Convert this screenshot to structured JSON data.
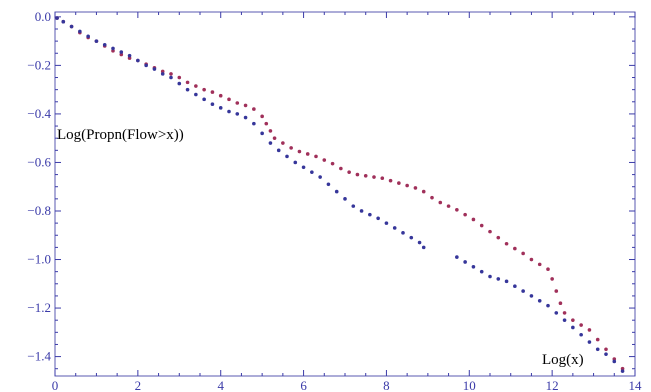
{
  "chart_data": {
    "type": "scatter",
    "xlabel": "Log(x)",
    "ylabel": "Log(Propn(Flow>x))",
    "xlim": [
      0,
      14
    ],
    "ylim": [
      -1.48,
      0.02
    ],
    "x_ticks": [
      0,
      2,
      4,
      6,
      8,
      10,
      12,
      14
    ],
    "y_ticks": [
      0.0,
      -0.2,
      -0.4,
      -0.6,
      -0.8,
      -1.0,
      -1.2,
      -1.4
    ],
    "y_tick_labels": [
      "0.0",
      "−0.2",
      "−0.4",
      "−0.6",
      "−0.8",
      "−1.0",
      "−1.2",
      "−1.4"
    ],
    "grid": false,
    "frame": true,
    "colors": {
      "axis": "#3a3aa8",
      "frame": "#5a5ab0"
    },
    "series": [
      {
        "color": "#a0305a",
        "points": [
          [
            0.05,
            -0.005
          ],
          [
            0.2,
            -0.02
          ],
          [
            0.4,
            -0.04
          ],
          [
            0.6,
            -0.065
          ],
          [
            0.8,
            -0.085
          ],
          [
            1.0,
            -0.1
          ],
          [
            1.2,
            -0.12
          ],
          [
            1.4,
            -0.14
          ],
          [
            1.6,
            -0.155
          ],
          [
            1.8,
            -0.17
          ],
          [
            2.0,
            -0.18
          ],
          [
            2.2,
            -0.195
          ],
          [
            2.4,
            -0.21
          ],
          [
            2.6,
            -0.225
          ],
          [
            2.8,
            -0.235
          ],
          [
            3.0,
            -0.25
          ],
          [
            3.2,
            -0.27
          ],
          [
            3.4,
            -0.285
          ],
          [
            3.6,
            -0.3
          ],
          [
            3.8,
            -0.31
          ],
          [
            4.0,
            -0.325
          ],
          [
            4.2,
            -0.34
          ],
          [
            4.4,
            -0.355
          ],
          [
            4.6,
            -0.365
          ],
          [
            4.8,
            -0.38
          ],
          [
            5.0,
            -0.41
          ],
          [
            5.1,
            -0.44
          ],
          [
            5.2,
            -0.47
          ],
          [
            5.3,
            -0.5
          ],
          [
            5.5,
            -0.52
          ],
          [
            5.7,
            -0.54
          ],
          [
            5.9,
            -0.555
          ],
          [
            6.1,
            -0.565
          ],
          [
            6.3,
            -0.575
          ],
          [
            6.5,
            -0.59
          ],
          [
            6.7,
            -0.605
          ],
          [
            6.9,
            -0.625
          ],
          [
            7.1,
            -0.64
          ],
          [
            7.3,
            -0.65
          ],
          [
            7.5,
            -0.655
          ],
          [
            7.7,
            -0.66
          ],
          [
            7.9,
            -0.665
          ],
          [
            8.1,
            -0.675
          ],
          [
            8.3,
            -0.685
          ],
          [
            8.5,
            -0.695
          ],
          [
            8.7,
            -0.705
          ],
          [
            8.9,
            -0.72
          ],
          [
            9.1,
            -0.745
          ],
          [
            9.3,
            -0.765
          ],
          [
            9.5,
            -0.78
          ],
          [
            9.7,
            -0.795
          ],
          [
            9.9,
            -0.815
          ],
          [
            10.1,
            -0.835
          ],
          [
            10.3,
            -0.86
          ],
          [
            10.5,
            -0.885
          ],
          [
            10.7,
            -0.91
          ],
          [
            10.9,
            -0.935
          ],
          [
            11.1,
            -0.955
          ],
          [
            11.3,
            -0.975
          ],
          [
            11.5,
            -1.0
          ],
          [
            11.7,
            -1.02
          ],
          [
            11.9,
            -1.04
          ],
          [
            12.0,
            -1.08
          ],
          [
            12.1,
            -1.13
          ],
          [
            12.2,
            -1.18
          ],
          [
            12.3,
            -1.22
          ],
          [
            12.5,
            -1.25
          ],
          [
            12.7,
            -1.27
          ],
          [
            12.9,
            -1.29
          ],
          [
            13.1,
            -1.33
          ],
          [
            13.3,
            -1.37
          ],
          [
            13.5,
            -1.41
          ],
          [
            13.7,
            -1.45
          ]
        ]
      },
      {
        "color": "#36369a",
        "points": [
          [
            0.05,
            -0.005
          ],
          [
            0.2,
            -0.02
          ],
          [
            0.4,
            -0.04
          ],
          [
            0.6,
            -0.06
          ],
          [
            0.8,
            -0.08
          ],
          [
            1.0,
            -0.1
          ],
          [
            1.2,
            -0.115
          ],
          [
            1.4,
            -0.13
          ],
          [
            1.6,
            -0.145
          ],
          [
            1.8,
            -0.16
          ],
          [
            2.0,
            -0.18
          ],
          [
            2.2,
            -0.2
          ],
          [
            2.4,
            -0.215
          ],
          [
            2.6,
            -0.235
          ],
          [
            2.8,
            -0.25
          ],
          [
            3.0,
            -0.275
          ],
          [
            3.2,
            -0.3
          ],
          [
            3.4,
            -0.32
          ],
          [
            3.6,
            -0.34
          ],
          [
            3.8,
            -0.36
          ],
          [
            4.0,
            -0.375
          ],
          [
            4.2,
            -0.39
          ],
          [
            4.4,
            -0.4
          ],
          [
            4.6,
            -0.415
          ],
          [
            4.8,
            -0.44
          ],
          [
            5.0,
            -0.48
          ],
          [
            5.2,
            -0.52
          ],
          [
            5.4,
            -0.55
          ],
          [
            5.6,
            -0.575
          ],
          [
            5.8,
            -0.6
          ],
          [
            6.0,
            -0.62
          ],
          [
            6.2,
            -0.64
          ],
          [
            6.4,
            -0.66
          ],
          [
            6.6,
            -0.69
          ],
          [
            6.8,
            -0.72
          ],
          [
            7.0,
            -0.75
          ],
          [
            7.2,
            -0.78
          ],
          [
            7.4,
            -0.8
          ],
          [
            7.6,
            -0.815
          ],
          [
            7.8,
            -0.83
          ],
          [
            8.0,
            -0.85
          ],
          [
            8.2,
            -0.87
          ],
          [
            8.4,
            -0.89
          ],
          [
            8.6,
            -0.91
          ],
          [
            8.8,
            -0.93
          ],
          [
            8.9,
            -0.95
          ],
          [
            9.7,
            -0.99
          ],
          [
            9.9,
            -1.01
          ],
          [
            10.1,
            -1.03
          ],
          [
            10.3,
            -1.05
          ],
          [
            10.5,
            -1.07
          ],
          [
            10.7,
            -1.08
          ],
          [
            10.9,
            -1.09
          ],
          [
            11.1,
            -1.11
          ],
          [
            11.3,
            -1.13
          ],
          [
            11.5,
            -1.15
          ],
          [
            11.7,
            -1.17
          ],
          [
            11.9,
            -1.19
          ],
          [
            12.1,
            -1.22
          ],
          [
            12.3,
            -1.25
          ],
          [
            12.5,
            -1.28
          ],
          [
            12.7,
            -1.31
          ],
          [
            12.9,
            -1.34
          ],
          [
            13.1,
            -1.37
          ],
          [
            13.3,
            -1.39
          ],
          [
            13.5,
            -1.42
          ],
          [
            13.7,
            -1.46
          ]
        ]
      }
    ]
  }
}
